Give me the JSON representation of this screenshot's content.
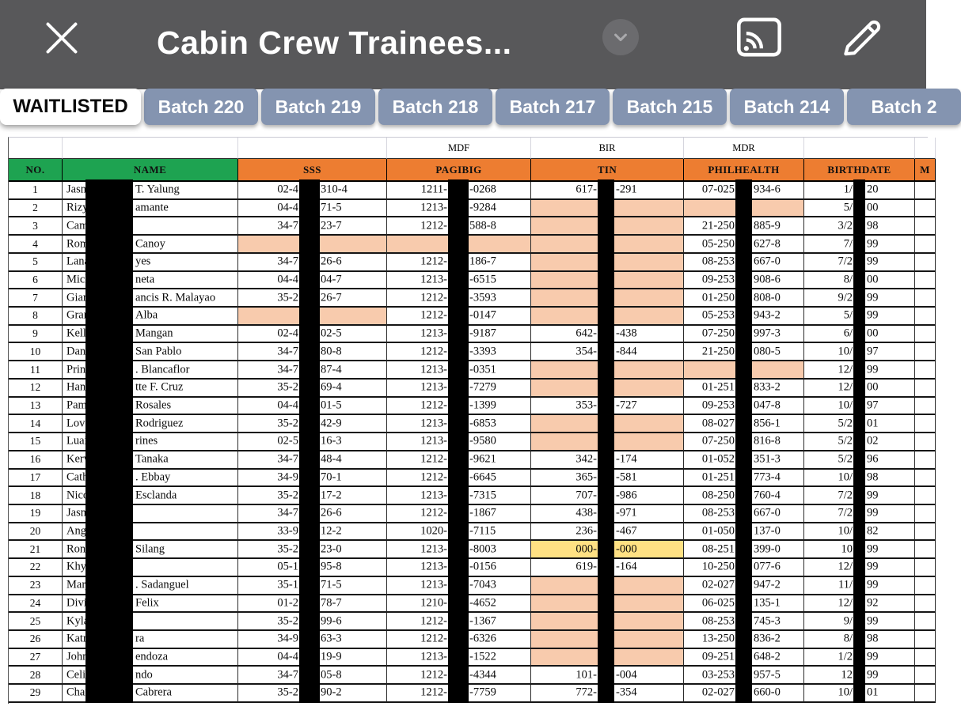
{
  "app_bar": {
    "title": "Cabin Crew Trainees...",
    "close_icon": "close-x",
    "expand_icon": "chevron-down",
    "cast_icon": "screen-share",
    "edit_icon": "pencil"
  },
  "tabs": [
    {
      "label": "WAITLISTED",
      "active": true
    },
    {
      "label": "Batch 220",
      "active": false
    },
    {
      "label": "Batch 219",
      "active": false
    },
    {
      "label": "Batch 218",
      "active": false
    },
    {
      "label": "Batch 217",
      "active": false
    },
    {
      "label": "Batch 215",
      "active": false
    },
    {
      "label": "Batch 214",
      "active": false
    },
    {
      "label": "Batch 2",
      "active": false
    }
  ],
  "table": {
    "group_row": [
      "",
      "",
      "",
      "MDF",
      "BIR",
      "MDR",
      "",
      ""
    ],
    "columns": [
      "NO.",
      "NAME",
      "SSS",
      "PAGIBIG",
      "TIN",
      "PHILHEALTH",
      "BIRTHDATE",
      "M"
    ],
    "rows": [
      {
        "no": "1",
        "name": [
          "Jasm",
          "T. Yalung"
        ],
        "sss": [
          "02-4",
          "310-4",
          ""
        ],
        "pagibig": [
          "1211-",
          "-0268",
          ""
        ],
        "tin": [
          "617-",
          "-291",
          ""
        ],
        "philhealth": [
          "07-025",
          "934-6",
          ""
        ],
        "birthdate": [
          "1/",
          "20",
          ""
        ]
      },
      {
        "no": "2",
        "name": [
          "Rizyl",
          "amante"
        ],
        "sss": [
          "04-4",
          "71-5",
          ""
        ],
        "pagibig": [
          "1213-",
          "-9284",
          ""
        ],
        "tin": [
          "",
          "",
          "peach"
        ],
        "philhealth": [
          "",
          "",
          "peach"
        ],
        "birthdate": [
          "5/",
          "00",
          ""
        ]
      },
      {
        "no": "3",
        "name": [
          "Cami",
          ""
        ],
        "sss": [
          "34-7",
          "23-7",
          ""
        ],
        "pagibig": [
          "1212-",
          "588-8",
          ""
        ],
        "tin": [
          "",
          "",
          "peach"
        ],
        "philhealth": [
          "21-250",
          "885-9",
          ""
        ],
        "birthdate": [
          "3/2",
          "98",
          ""
        ]
      },
      {
        "no": "4",
        "name": [
          "Rom",
          "Canoy"
        ],
        "sss": [
          "",
          "",
          "peach"
        ],
        "pagibig": [
          "",
          "",
          "peach"
        ],
        "tin": [
          "",
          "",
          "peach"
        ],
        "philhealth": [
          "05-250",
          "627-8",
          ""
        ],
        "birthdate": [
          "7/",
          "99",
          ""
        ]
      },
      {
        "no": "5",
        "name": [
          "Lana",
          "yes"
        ],
        "sss": [
          "34-7",
          "26-6",
          ""
        ],
        "pagibig": [
          "1212-",
          "186-7",
          ""
        ],
        "tin": [
          "",
          "",
          "peach"
        ],
        "philhealth": [
          "08-253",
          "667-0",
          ""
        ],
        "birthdate": [
          "7/2",
          "99",
          ""
        ]
      },
      {
        "no": "6",
        "name": [
          "Mich",
          "neta"
        ],
        "sss": [
          "04-4",
          "04-7",
          ""
        ],
        "pagibig": [
          "1213-",
          "-6515",
          ""
        ],
        "tin": [
          "",
          "",
          "peach"
        ],
        "philhealth": [
          "09-253",
          "908-6",
          ""
        ],
        "birthdate": [
          "8/",
          "00",
          ""
        ]
      },
      {
        "no": "7",
        "name": [
          "Gian",
          "ancis R. Malayao"
        ],
        "sss": [
          "35-2",
          "26-7",
          ""
        ],
        "pagibig": [
          "1212-",
          "-3593",
          ""
        ],
        "tin": [
          "",
          "",
          "peach"
        ],
        "philhealth": [
          "01-250",
          "808-0",
          ""
        ],
        "birthdate": [
          "9/2",
          "99",
          ""
        ]
      },
      {
        "no": "8",
        "name": [
          "Gran",
          "Alba"
        ],
        "sss": [
          "",
          "",
          "peach"
        ],
        "pagibig": [
          "1212-",
          "-0147",
          ""
        ],
        "tin": [
          "",
          "",
          "peach"
        ],
        "philhealth": [
          "05-253",
          "943-2",
          ""
        ],
        "birthdate": [
          "5/",
          "99",
          ""
        ]
      },
      {
        "no": "9",
        "name": [
          "Kelly",
          "Mangan"
        ],
        "sss": [
          "02-4",
          "02-5",
          ""
        ],
        "pagibig": [
          "1213-",
          "-9187",
          ""
        ],
        "tin": [
          "642-",
          "-438",
          ""
        ],
        "philhealth": [
          "07-250",
          "997-3",
          ""
        ],
        "birthdate": [
          "6/",
          "00",
          ""
        ]
      },
      {
        "no": "10",
        "name": [
          "Dani",
          "San Pablo"
        ],
        "sss": [
          "34-7",
          "80-8",
          ""
        ],
        "pagibig": [
          "1212-",
          "-3393",
          ""
        ],
        "tin": [
          "354-",
          "-844",
          ""
        ],
        "philhealth": [
          "21-250",
          "080-5",
          ""
        ],
        "birthdate": [
          "10/",
          "97",
          ""
        ]
      },
      {
        "no": "11",
        "name": [
          "Princ",
          ". Blancaflor"
        ],
        "sss": [
          "34-7",
          "87-4",
          ""
        ],
        "pagibig": [
          "1213-",
          "-0351",
          ""
        ],
        "tin": [
          "",
          "",
          "peach"
        ],
        "philhealth": [
          "",
          "",
          "peach"
        ],
        "birthdate": [
          "12/",
          "99",
          ""
        ]
      },
      {
        "no": "12",
        "name": [
          "Hann",
          "tte F. Cruz"
        ],
        "sss": [
          "35-2",
          "69-4",
          ""
        ],
        "pagibig": [
          "1213-",
          "-7279",
          ""
        ],
        "tin": [
          "",
          "",
          "peach"
        ],
        "philhealth": [
          "01-251",
          "833-2",
          ""
        ],
        "birthdate": [
          "12/",
          "00",
          ""
        ]
      },
      {
        "no": "13",
        "name": [
          "Pam",
          "Rosales"
        ],
        "sss": [
          "04-4",
          "01-5",
          ""
        ],
        "pagibig": [
          "1212-",
          "-1399",
          ""
        ],
        "tin": [
          "353-",
          "-727",
          ""
        ],
        "philhealth": [
          "09-253",
          "047-8",
          ""
        ],
        "birthdate": [
          "10/",
          "97",
          ""
        ]
      },
      {
        "no": "14",
        "name": [
          "Love",
          "Rodriguez"
        ],
        "sss": [
          "35-2",
          "42-9",
          ""
        ],
        "pagibig": [
          "1213-",
          "-6853",
          ""
        ],
        "tin": [
          "",
          "",
          "peach"
        ],
        "philhealth": [
          "08-027",
          "856-1",
          ""
        ],
        "birthdate": [
          "5/2",
          "01",
          ""
        ]
      },
      {
        "no": "15",
        "name": [
          "Luai",
          "rines"
        ],
        "sss": [
          "02-5",
          "16-3",
          ""
        ],
        "pagibig": [
          "1213-",
          "-9580",
          ""
        ],
        "tin": [
          "",
          "",
          "peach"
        ],
        "philhealth": [
          "07-250",
          "816-8",
          ""
        ],
        "birthdate": [
          "5/2",
          "02",
          ""
        ]
      },
      {
        "no": "16",
        "name": [
          "Kerv",
          "Tanaka"
        ],
        "sss": [
          "34-7",
          "48-4",
          ""
        ],
        "pagibig": [
          "1212-",
          "-9621",
          ""
        ],
        "tin": [
          "342-",
          "-174",
          ""
        ],
        "philhealth": [
          "01-052",
          "351-3",
          ""
        ],
        "birthdate": [
          "5/2",
          "96",
          ""
        ]
      },
      {
        "no": "17",
        "name": [
          "Cath",
          ". Ebbay"
        ],
        "sss": [
          "34-9",
          "70-1",
          ""
        ],
        "pagibig": [
          "1212-",
          "-6645",
          ""
        ],
        "tin": [
          "365-",
          "-581",
          ""
        ],
        "philhealth": [
          "01-251",
          "773-4",
          ""
        ],
        "birthdate": [
          "10/",
          "98",
          ""
        ]
      },
      {
        "no": "18",
        "name": [
          "Nico",
          "Esclanda"
        ],
        "sss": [
          "35-2",
          "17-2",
          ""
        ],
        "pagibig": [
          "1213-",
          "-7315",
          ""
        ],
        "tin": [
          "707-",
          "-986",
          ""
        ],
        "philhealth": [
          "08-250",
          "760-4",
          ""
        ],
        "birthdate": [
          "7/2",
          "99",
          ""
        ]
      },
      {
        "no": "19",
        "name": [
          "Jasm",
          ""
        ],
        "sss": [
          "34-7",
          "26-6",
          ""
        ],
        "pagibig": [
          "1212-",
          "-1867",
          ""
        ],
        "tin": [
          "438-",
          "-971",
          ""
        ],
        "philhealth": [
          "08-253",
          "667-0",
          ""
        ],
        "birthdate": [
          "7/2",
          "99",
          ""
        ]
      },
      {
        "no": "20",
        "name": [
          "Ange",
          ""
        ],
        "sss": [
          "33-9",
          "12-2",
          ""
        ],
        "pagibig": [
          "1020-",
          "-7115",
          ""
        ],
        "tin": [
          "236-",
          "-467",
          ""
        ],
        "philhealth": [
          "01-050",
          "137-0",
          ""
        ],
        "birthdate": [
          "10/",
          "82",
          ""
        ]
      },
      {
        "no": "21",
        "name": [
          "Rona",
          "Silang"
        ],
        "sss": [
          "35-2",
          "23-0",
          ""
        ],
        "pagibig": [
          "1213-",
          "-8003",
          ""
        ],
        "tin": [
          "000-",
          "-000",
          "yellow"
        ],
        "philhealth": [
          "08-251",
          "399-0",
          ""
        ],
        "birthdate": [
          "10",
          "99",
          ""
        ]
      },
      {
        "no": "22",
        "name": [
          "Khy",
          ""
        ],
        "sss": [
          "05-1",
          "95-8",
          ""
        ],
        "pagibig": [
          "1213-",
          "-0156",
          ""
        ],
        "tin": [
          "619-",
          "-164",
          ""
        ],
        "philhealth": [
          "10-250",
          "077-6",
          ""
        ],
        "birthdate": [
          "12/",
          "99",
          ""
        ]
      },
      {
        "no": "23",
        "name": [
          "Marj",
          ". Sadanguel"
        ],
        "sss": [
          "35-1",
          "71-5",
          ""
        ],
        "pagibig": [
          "1213-",
          "-7043",
          ""
        ],
        "tin": [
          "",
          "",
          "peach"
        ],
        "philhealth": [
          "02-027",
          "947-2",
          ""
        ],
        "birthdate": [
          "11/",
          "99",
          ""
        ]
      },
      {
        "no": "24",
        "name": [
          "Divi",
          "Felix"
        ],
        "sss": [
          "01-2",
          "78-7",
          ""
        ],
        "pagibig": [
          "1210-",
          "-4652",
          ""
        ],
        "tin": [
          "",
          "",
          "peach"
        ],
        "philhealth": [
          "06-025",
          "135-1",
          ""
        ],
        "birthdate": [
          "12/",
          "92",
          ""
        ]
      },
      {
        "no": "25",
        "name": [
          "Kyla",
          ""
        ],
        "sss": [
          "35-2",
          "99-6",
          ""
        ],
        "pagibig": [
          "1212-",
          "-1367",
          ""
        ],
        "tin": [
          "",
          "",
          "peach"
        ],
        "philhealth": [
          "08-253",
          "745-3",
          ""
        ],
        "birthdate": [
          "9/",
          "99",
          ""
        ]
      },
      {
        "no": "26",
        "name": [
          "Katri",
          "ra"
        ],
        "sss": [
          "34-9",
          "63-3",
          ""
        ],
        "pagibig": [
          "1212-",
          "-6326",
          ""
        ],
        "tin": [
          "",
          "",
          "peach"
        ],
        "philhealth": [
          "13-250",
          "836-2",
          ""
        ],
        "birthdate": [
          "8/",
          "98",
          ""
        ]
      },
      {
        "no": "27",
        "name": [
          "John",
          "endoza"
        ],
        "sss": [
          "04-4",
          "19-9",
          ""
        ],
        "pagibig": [
          "1213-",
          "-1522",
          ""
        ],
        "tin": [
          "",
          "",
          "peach"
        ],
        "philhealth": [
          "09-251",
          "648-2",
          ""
        ],
        "birthdate": [
          "1/2",
          "99",
          ""
        ]
      },
      {
        "no": "28",
        "name": [
          "Celin",
          "ndo"
        ],
        "sss": [
          "34-7",
          "05-8",
          ""
        ],
        "pagibig": [
          "1212-",
          "-4344",
          ""
        ],
        "tin": [
          "101-",
          "-004",
          ""
        ],
        "philhealth": [
          "03-253",
          "957-5",
          ""
        ],
        "birthdate": [
          "12",
          "99",
          ""
        ]
      },
      {
        "no": "29",
        "name": [
          "Char",
          "Cabrera"
        ],
        "sss": [
          "35-2",
          "90-2",
          ""
        ],
        "pagibig": [
          "1212-",
          "-7759",
          ""
        ],
        "tin": [
          "772-",
          "-354",
          ""
        ],
        "philhealth": [
          "02-027",
          "660-0",
          ""
        ],
        "birthdate": [
          "10/",
          "01",
          ""
        ]
      }
    ]
  },
  "colors": {
    "appbar": "#58585a",
    "tabbg": "#8494b0",
    "tab_active": "#ffffff",
    "green": "#1ea351",
    "orange": "#ed7d31",
    "peach": "#f8cbad",
    "yellow": "#ffe183",
    "redaction": "#000000"
  }
}
